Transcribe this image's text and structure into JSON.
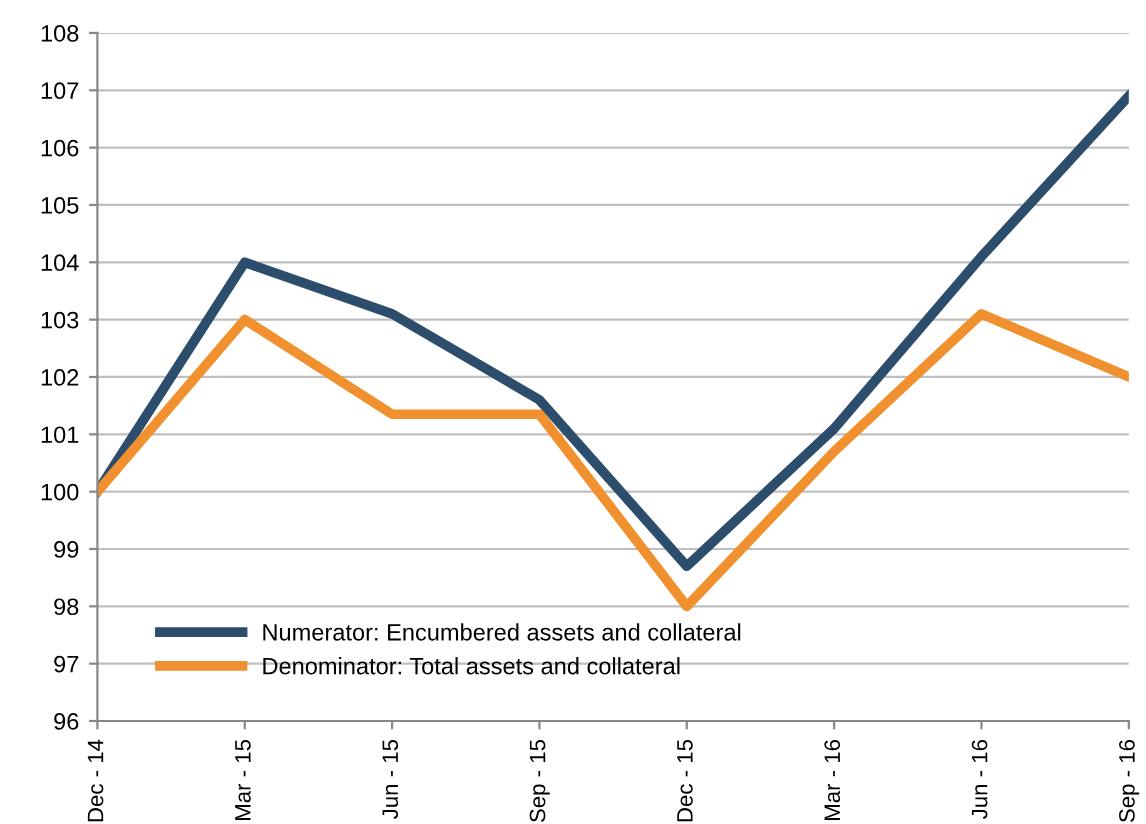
{
  "chart_data": {
    "type": "line",
    "categories": [
      "Dec - 14",
      "Mar - 15",
      "Jun - 15",
      "Sep - 15",
      "Dec - 15",
      "Mar - 16",
      "Jun - 16",
      "Sep - 16"
    ],
    "series": [
      {
        "name": "Numerator: Encumbered assets and collateral",
        "color": "#2c4d6b",
        "values": [
          100,
          104.0,
          103.1,
          101.6,
          98.7,
          101.1,
          104.1,
          106.9
        ]
      },
      {
        "name": "Denominator: Total assets and collateral",
        "color": "#f0902e",
        "values": [
          100,
          103.0,
          101.35,
          101.35,
          98.0,
          100.7,
          103.1,
          102.0
        ]
      }
    ],
    "ylim": [
      96,
      108
    ],
    "yticks": [
      96,
      97,
      98,
      99,
      100,
      101,
      102,
      103,
      104,
      105,
      106,
      107,
      108
    ],
    "grid": "y",
    "legend": "bottom left",
    "marker": "none",
    "line_style": "solid"
  }
}
